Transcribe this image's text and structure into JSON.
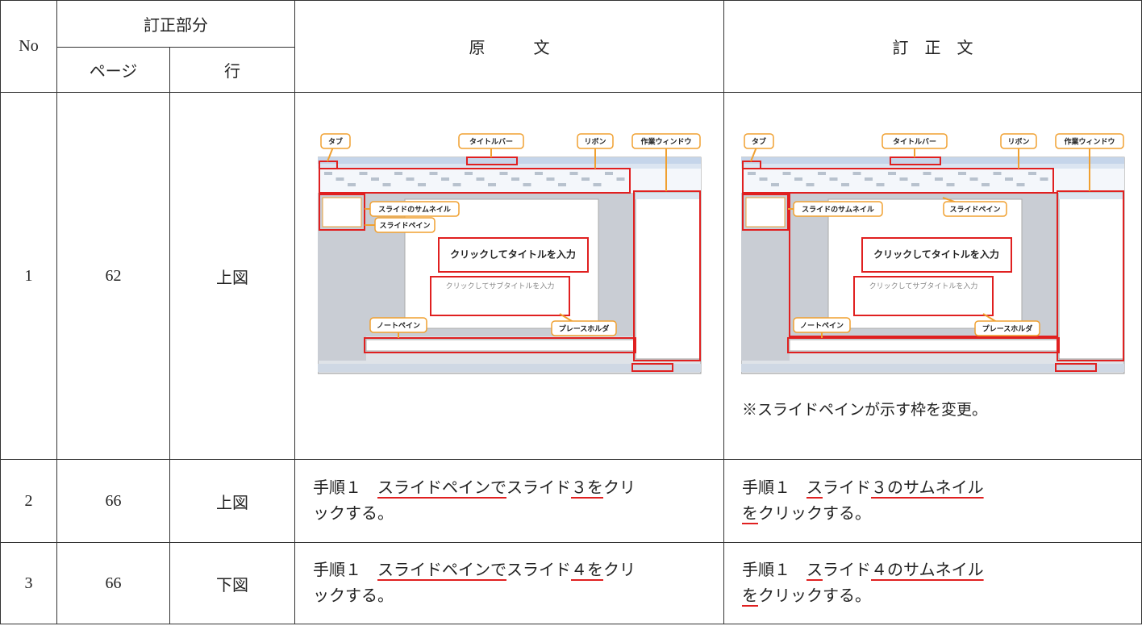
{
  "table": {
    "header": {
      "no": "No",
      "correction_part": "訂正部分",
      "page": "ページ",
      "line": "行",
      "original": "原　　　文",
      "corrected": "訂　正　文"
    },
    "rows": [
      {
        "no": 1,
        "page": 62,
        "line": "上図",
        "original": {
          "screenshot": {
            "labels": {
              "tab": "タブ",
              "title_bar": "タイトルバー",
              "ribbon": "リボン",
              "task_pane": "作業ウィンドウ",
              "thumbnail": "スライドのサムネイル",
              "slide_pane": "スライドペイン",
              "title_placeholder": "クリックしてタイトルを入力",
              "subtitle_placeholder": "クリックしてサブタイトルを入力",
              "notes_pane": "ノートペイン",
              "placeholder": "プレースホルダ"
            }
          }
        },
        "corrected": {
          "screenshot": {
            "labels": {
              "tab": "タブ",
              "title_bar": "タイトルバー",
              "ribbon": "リボン",
              "task_pane": "作業ウィンドウ",
              "thumbnail": "スライドのサムネイル",
              "slide_pane": "スライドペイン",
              "title_placeholder": "クリックしてタイトルを入力",
              "subtitle_placeholder": "クリックしてサブタイトルを入力",
              "notes_pane": "ノートペイン",
              "placeholder": "プレースホルダ"
            }
          },
          "note": "※スライドペインが示す枠を変更。"
        }
      },
      {
        "no": 2,
        "page": 66,
        "line": "上図",
        "original": [
          [
            {
              "text": "手順１　"
            },
            {
              "text": "スライドペインで",
              "underline": true
            },
            {
              "text": "スライド"
            },
            {
              "text": "３を",
              "underline": true
            },
            {
              "text": "クリ"
            }
          ],
          [
            {
              "text": "ックする。"
            }
          ]
        ],
        "corrected": [
          [
            {
              "text": "手順１　"
            },
            {
              "text": "ス",
              "underline": true
            },
            {
              "text": "ライド"
            },
            {
              "text": "３のサムネイル",
              "underline": true
            }
          ],
          [
            {
              "text": "を",
              "underline": true
            },
            {
              "text": "クリックする。"
            }
          ]
        ]
      },
      {
        "no": 3,
        "page": 66,
        "line": "下図",
        "original": [
          [
            {
              "text": "手順１　"
            },
            {
              "text": "スライドペインで",
              "underline": true
            },
            {
              "text": "スライド"
            },
            {
              "text": "４を",
              "underline": true
            },
            {
              "text": "クリ"
            }
          ],
          [
            {
              "text": "ックする。"
            }
          ]
        ],
        "corrected": [
          [
            {
              "text": "手順１　"
            },
            {
              "text": "ス",
              "underline": true
            },
            {
              "text": "ライド"
            },
            {
              "text": "４のサムネイル",
              "underline": true
            }
          ],
          [
            {
              "text": "を",
              "underline": true
            },
            {
              "text": "クリックする。"
            }
          ]
        ]
      }
    ]
  }
}
